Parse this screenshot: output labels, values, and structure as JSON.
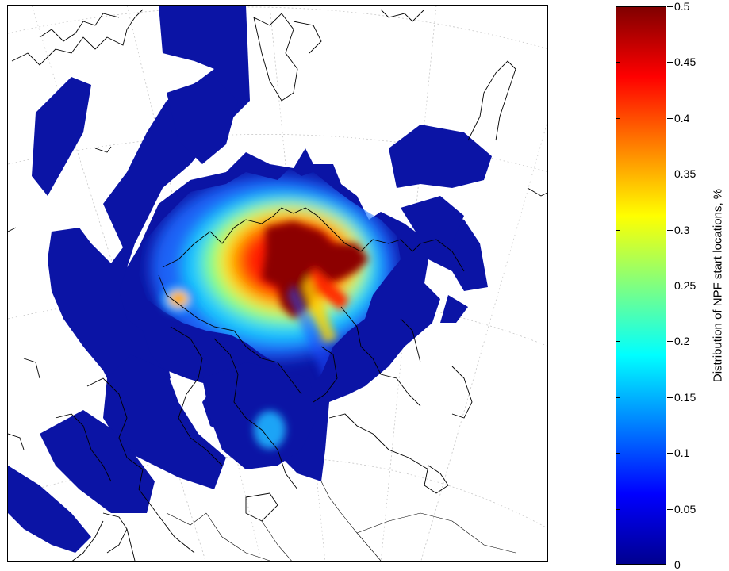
{
  "colorbar": {
    "title": "Distribution of NPF start locations, %",
    "min": 0,
    "max": 0.5,
    "ticks": [
      {
        "value": 0,
        "label": "0"
      },
      {
        "value": 0.05,
        "label": "0.05"
      },
      {
        "value": 0.1,
        "label": "0.1"
      },
      {
        "value": 0.15,
        "label": "0.15"
      },
      {
        "value": 0.2,
        "label": "0.2"
      },
      {
        "value": 0.25,
        "label": "0.25"
      },
      {
        "value": 0.3,
        "label": "0.3"
      },
      {
        "value": 0.35,
        "label": "0.35"
      },
      {
        "value": 0.4,
        "label": "0.4"
      },
      {
        "value": 0.45,
        "label": "0.45"
      },
      {
        "value": 0.5,
        "label": "0.5"
      }
    ],
    "colormap": "jet",
    "colormap_stops": [
      "#00008f",
      "#0000ff",
      "#0080ff",
      "#00ffff",
      "#80ff80",
      "#ffff00",
      "#ff8000",
      "#ff0000",
      "#800000"
    ]
  },
  "colors": {
    "background": "#0b14a5",
    "coastline": "#000000",
    "graticule": "#c8c8c8"
  }
}
